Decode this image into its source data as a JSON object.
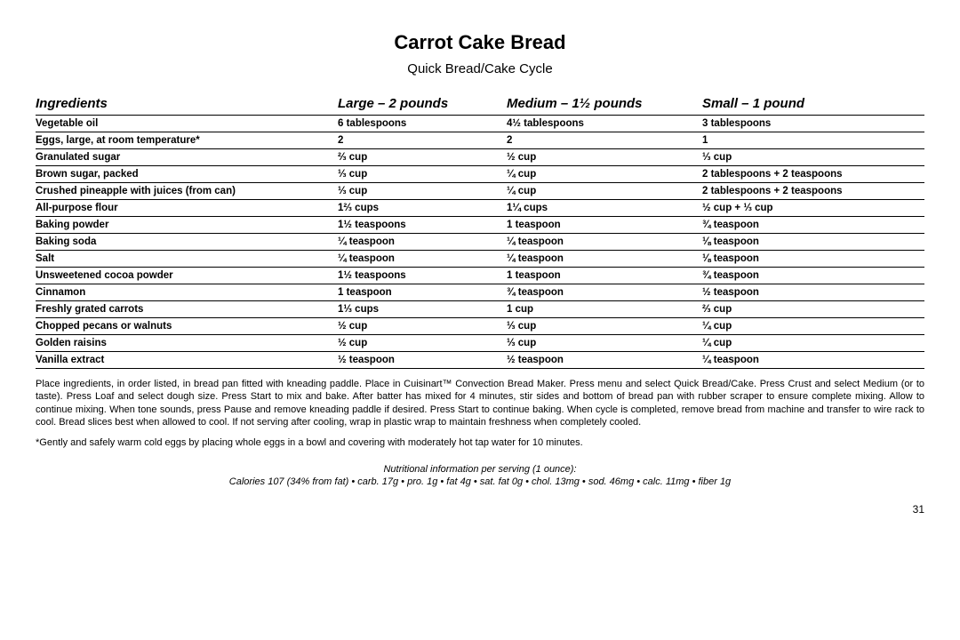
{
  "title": "Carrot Cake Bread",
  "subtitle": "Quick Bread/Cake Cycle",
  "headers": {
    "ingredients": "Ingredients",
    "large": "Large – 2 pounds",
    "medium": "Medium – 1½ pounds",
    "small": "Small – 1 pound"
  },
  "rows": [
    {
      "ing": "Vegetable oil",
      "lg": "6 tablespoons",
      "md": "4½ tablespoons",
      "sm": "3 tablespoons"
    },
    {
      "ing": "Eggs, large, at room temperature*",
      "lg": "2",
      "md": "2",
      "sm": "1"
    },
    {
      "ing": "Granulated sugar",
      "lg": "⅔ cup",
      "md": "½ cup",
      "sm": "⅓ cup"
    },
    {
      "ing": "Brown sugar, packed",
      "lg": "⅓ cup",
      "md": "¼ cup",
      "sm": "2 tablespoons + 2 teaspoons"
    },
    {
      "ing": "Crushed pineapple with juices (from can)",
      "lg": "⅓ cup",
      "md": "¼ cup",
      "sm": "2 tablespoons + 2 teaspoons"
    },
    {
      "ing": "All-purpose flour",
      "lg": "1⅔ cups",
      "md": "1¼ cups",
      "sm": "½ cup + ⅓ cup"
    },
    {
      "ing": "Baking powder",
      "lg": "1½ teaspoons",
      "md": "1 teaspoon",
      "sm": "¾ teaspoon"
    },
    {
      "ing": "Baking soda",
      "lg": "¼ teaspoon",
      "md": "¼ teaspoon",
      "sm": "⅛ teaspoon"
    },
    {
      "ing": "Salt",
      "lg": "¼ teaspoon",
      "md": "¼ teaspoon",
      "sm": "⅛ teaspoon"
    },
    {
      "ing": "Unsweetened cocoa powder",
      "lg": "1½ teaspoons",
      "md": "1 teaspoon",
      "sm": "¾ teaspoon"
    },
    {
      "ing": "Cinnamon",
      "lg": "1 teaspoon",
      "md": "¾ teaspoon",
      "sm": "½ teaspoon"
    },
    {
      "ing": "Freshly grated carrots",
      "lg": "1⅓ cups",
      "md": "1 cup",
      "sm": "⅔ cup"
    },
    {
      "ing": "Chopped pecans or walnuts",
      "lg": "½ cup",
      "md": "⅓ cup",
      "sm": "¼ cup"
    },
    {
      "ing": "Golden raisins",
      "lg": "½ cup",
      "md": "⅓ cup",
      "sm": "¼ cup"
    },
    {
      "ing": "Vanilla extract",
      "lg": "½ teaspoon",
      "md": "½ teaspoon",
      "sm": "¼ teaspoon"
    }
  ],
  "instructions": "Place ingredients, in order listed, in bread pan fitted with kneading paddle. Place in Cuisinart™ Convection Bread Maker. Press menu and select Quick Bread/Cake. Press Crust and select Medium (or to taste). Press Loaf and select dough size. Press Start to mix and bake. After batter has mixed for 4 minutes, stir sides and bottom of bread pan with rubber scraper to ensure complete mixing. Allow to continue mixing. When tone sounds, press Pause and remove kneading paddle if desired. Press Start to continue baking. When cycle is completed, remove bread from machine and transfer to wire rack to cool. Bread slices best when allowed to cool. If not serving after cooling, wrap in plastic wrap to maintain freshness when completely cooled.",
  "footnote": "*Gently and safely warm cold eggs by placing whole eggs in a bowl and covering with moderately hot tap water for 10 minutes.",
  "nutrition_label": "Nutritional information per serving (1 ounce):",
  "nutrition": "Calories 107 (34% from fat) • carb. 17g • pro. 1g • fat 4g • sat. fat 0g • chol. 13mg • sod. 46mg • calc. 11mg • fiber 1g",
  "page": "31"
}
